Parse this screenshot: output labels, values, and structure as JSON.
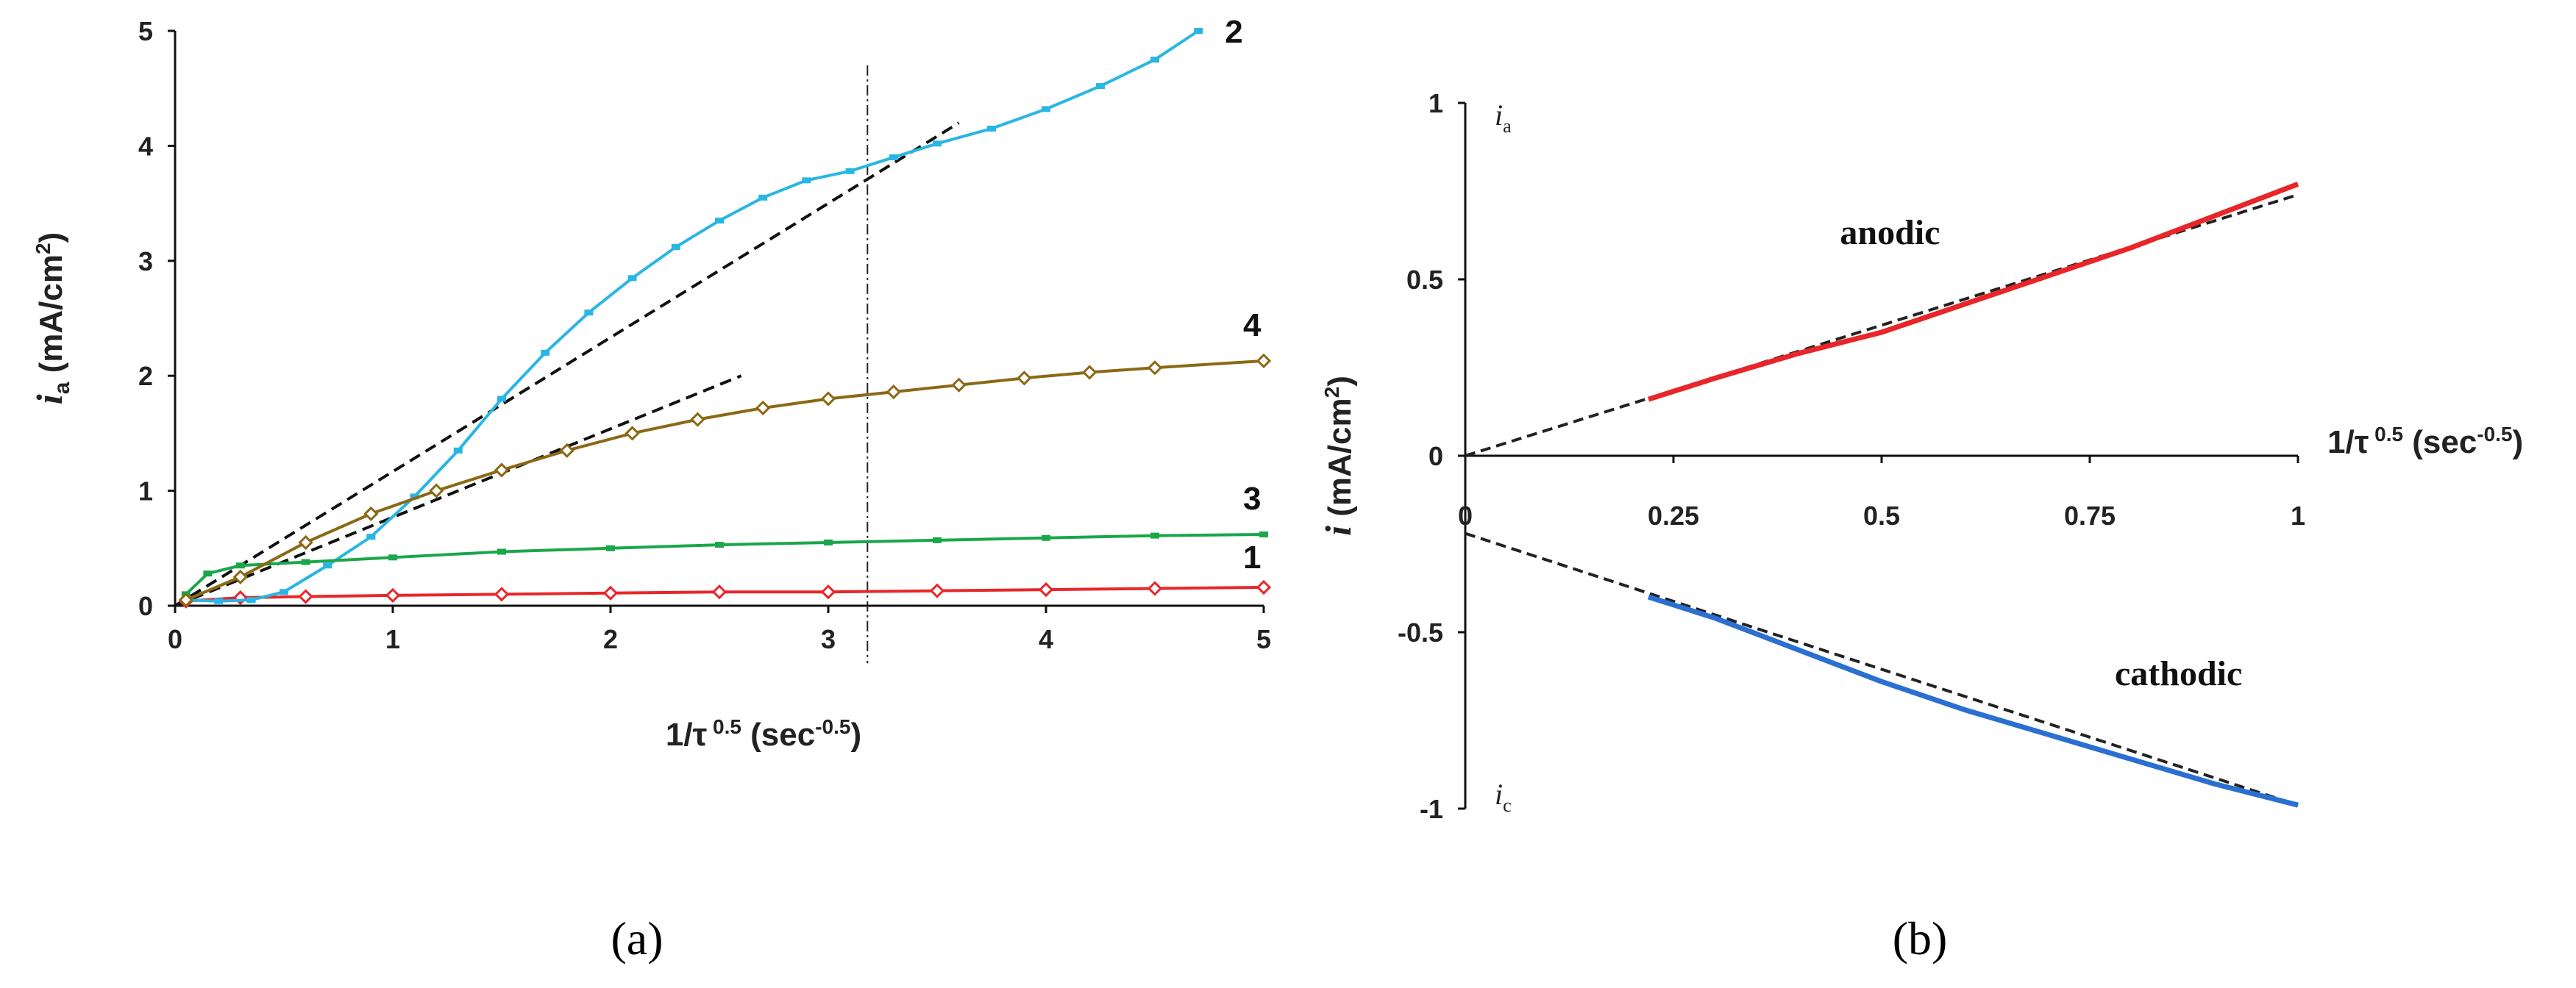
{
  "chart_data": [
    {
      "panel": "a",
      "type": "line",
      "xlabel": "1/τ 0.5 (sec-0.5)",
      "ylabel": "ia (mA/cm2)",
      "xlim": [
        0,
        5
      ],
      "ylim": [
        0,
        5
      ],
      "xticks": [
        "0",
        "1",
        "2",
        "3",
        "4",
        "5"
      ],
      "yticks": [
        "0",
        "1",
        "2",
        "3",
        "4",
        "5"
      ],
      "vline_x": 3.18,
      "series": [
        {
          "name": "1",
          "color": "#e8262a",
          "marker": "diamond",
          "x": [
            0.05,
            0.3,
            0.6,
            1.0,
            1.5,
            2.0,
            2.5,
            3.0,
            3.5,
            4.0,
            4.5,
            5.0
          ],
          "y": [
            0.04,
            0.07,
            0.08,
            0.09,
            0.1,
            0.11,
            0.12,
            0.12,
            0.13,
            0.14,
            0.15,
            0.16
          ]
        },
        {
          "name": "2",
          "color": "#29b6e4",
          "marker": "square",
          "x": [
            0.05,
            0.2,
            0.35,
            0.5,
            0.7,
            0.9,
            1.1,
            1.3,
            1.5,
            1.7,
            1.9,
            2.1,
            2.3,
            2.5,
            2.7,
            2.9,
            3.1,
            3.3,
            3.5,
            3.75,
            4.0,
            4.25,
            4.5,
            4.7
          ],
          "y": [
            0.05,
            0.04,
            0.05,
            0.12,
            0.35,
            0.6,
            0.95,
            1.35,
            1.8,
            2.2,
            2.55,
            2.85,
            3.12,
            3.35,
            3.55,
            3.7,
            3.78,
            3.9,
            4.02,
            4.15,
            4.32,
            4.52,
            4.75,
            5.0
          ]
        },
        {
          "name": "3",
          "color": "#1aa64a",
          "marker": "square",
          "x": [
            0.05,
            0.15,
            0.3,
            0.6,
            1.0,
            1.5,
            2.0,
            2.5,
            3.0,
            3.5,
            4.0,
            4.5,
            5.0
          ],
          "y": [
            0.1,
            0.28,
            0.35,
            0.38,
            0.42,
            0.47,
            0.5,
            0.53,
            0.55,
            0.57,
            0.59,
            0.61,
            0.62
          ]
        },
        {
          "name": "4",
          "color": "#8b6914",
          "marker": "diamond",
          "x": [
            0.05,
            0.3,
            0.6,
            0.9,
            1.2,
            1.5,
            1.8,
            2.1,
            2.4,
            2.7,
            3.0,
            3.3,
            3.6,
            3.9,
            4.2,
            4.5,
            5.0
          ],
          "y": [
            0.05,
            0.25,
            0.55,
            0.8,
            1.0,
            1.18,
            1.35,
            1.5,
            1.62,
            1.72,
            1.8,
            1.86,
            1.92,
            1.98,
            2.03,
            2.07,
            2.13
          ]
        }
      ],
      "fit_lines": [
        {
          "x": [
            0.0,
            3.6
          ],
          "y": [
            0.0,
            4.2
          ]
        },
        {
          "x": [
            0.0,
            2.6
          ],
          "y": [
            0.0,
            2.0
          ]
        }
      ]
    },
    {
      "panel": "b",
      "type": "line",
      "xlabel": "1/τ 0.5 (sec-0.5)",
      "ylabel": "i (mA/cm2)",
      "xlim": [
        0,
        1
      ],
      "ylim": [
        -1,
        1
      ],
      "xticks": [
        "0",
        "0.25",
        "0.5",
        "0.75",
        "1"
      ],
      "yticks": [
        "1",
        "0.5",
        "0",
        "-0.5",
        "-1"
      ],
      "ia_label": "ia",
      "ic_label": "ic",
      "series": [
        {
          "name": "anodic",
          "color": "#e8262a",
          "x": [
            0.22,
            0.3,
            0.4,
            0.5,
            0.6,
            0.7,
            0.8,
            0.9,
            1.0
          ],
          "y": [
            0.16,
            0.22,
            0.29,
            0.35,
            0.43,
            0.51,
            0.59,
            0.68,
            0.77
          ]
        },
        {
          "name": "cathodic",
          "color": "#2a6fd1",
          "x": [
            0.22,
            0.3,
            0.4,
            0.5,
            0.6,
            0.7,
            0.8,
            0.9,
            1.0
          ],
          "y": [
            -0.4,
            -0.46,
            -0.55,
            -0.64,
            -0.72,
            -0.79,
            -0.86,
            -0.93,
            -0.99
          ]
        }
      ],
      "fit_lines": [
        {
          "x": [
            0.0,
            1.0
          ],
          "y": [
            0.0,
            0.74
          ]
        },
        {
          "x": [
            0.0,
            1.0
          ],
          "y": [
            -0.22,
            -0.99
          ]
        }
      ]
    }
  ],
  "panel_labels": {
    "a": "(a)",
    "b": "(b)"
  },
  "anodic_text": "anodic",
  "cathodic_text": "cathodic"
}
